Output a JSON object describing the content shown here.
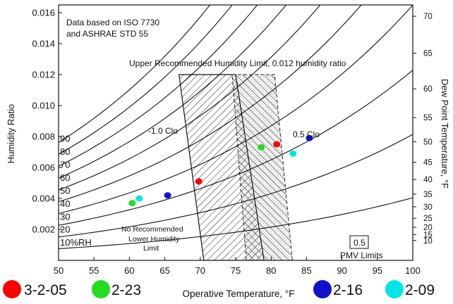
{
  "chart_data": {
    "type": "scatter",
    "xlabel": "Operative Temperature, °F",
    "ylabel": "Humidity Ratio",
    "y2label": "Dew Point Temperature, °F",
    "xlim": [
      50,
      100
    ],
    "ylim": [
      0,
      0.0165
    ],
    "x_ticks": [
      50,
      55,
      60,
      65,
      70,
      75,
      80,
      85,
      90,
      95,
      100
    ],
    "y_ticks": [
      0.002,
      0.004,
      0.006,
      0.008,
      0.01,
      0.012,
      0.014,
      0.016
    ],
    "y_tick_labels": [
      "0.002",
      "0.004",
      "0.006",
      "0.008",
      "0.010",
      "0.012",
      "0.014",
      "0.016"
    ],
    "dew_point_ticks": [
      {
        "label": "70",
        "w": 0.01577
      },
      {
        "label": "65",
        "w": 0.01338
      },
      {
        "label": "60",
        "w": 0.01108
      },
      {
        "label": "55",
        "w": 0.00922
      },
      {
        "label": "50",
        "w": 0.00766
      },
      {
        "label": "45",
        "w": 0.00634
      },
      {
        "label": "40",
        "w": 0.00522
      },
      {
        "label": "35",
        "w": 0.00428
      },
      {
        "label": "30",
        "w": 0.00346
      },
      {
        "label": "25",
        "w": 0.00272
      },
      {
        "label": "20",
        "w": 0.00214
      },
      {
        "label": "15",
        "w": 0.00166
      },
      {
        "label": "10",
        "w": 0.00128
      }
    ],
    "rh_curves": [
      {
        "label": "10%RH",
        "rh": 10
      },
      {
        "label": "20",
        "rh": 20
      },
      {
        "label": "30",
        "rh": 30
      },
      {
        "label": "40",
        "rh": 40
      },
      {
        "label": "50",
        "rh": 50
      },
      {
        "label": "60",
        "rh": 60
      },
      {
        "label": "70",
        "rh": 70
      },
      {
        "label": "80",
        "rh": 80
      },
      {
        "label": "90",
        "rh": 90
      },
      {
        "label": "",
        "rh": 100
      }
    ],
    "comfort_zones": [
      {
        "name": "1.0 Clo",
        "polygon": [
          [
            67,
            0.012
          ],
          [
            75,
            0.012
          ],
          [
            79,
            0.0
          ],
          [
            70.5,
            0.0
          ]
        ]
      },
      {
        "name": "0.5 Clo",
        "polygon": [
          [
            74.5,
            0.012
          ],
          [
            80.5,
            0.012
          ],
          [
            83,
            0.0
          ],
          [
            76.5,
            0.0
          ]
        ]
      }
    ],
    "series": [
      {
        "name": "3-2-05",
        "color": "#ff0000",
        "points": [
          [
            69.8,
            0.0051
          ],
          [
            80.8,
            0.0075
          ]
        ]
      },
      {
        "name": "2-23",
        "color": "#22dd22",
        "points": [
          [
            60.4,
            0.0037
          ],
          [
            78.6,
            0.0073
          ]
        ]
      },
      {
        "name": "2-16",
        "color": "#1111cc",
        "points": [
          [
            65.4,
            0.0042
          ],
          [
            85.4,
            0.0079
          ]
        ]
      },
      {
        "name": "2-09",
        "color": "#00e5e5",
        "points": [
          [
            61.4,
            0.004
          ],
          [
            83.1,
            0.0069
          ]
        ]
      }
    ],
    "annotations": {
      "source_line1": "Data based on ISO 7730",
      "source_line2": "and ASHRAE STD 55",
      "upper_limit": "Upper Recommended Humidity Limit, 0.012 humidity ratio",
      "clo_10": "1.0 Clo",
      "clo_05": "0.5 Clo",
      "lower_limit_1": "No Recommended",
      "lower_limit_2": "Lower Humidity",
      "lower_limit_3": "Limit",
      "pmv_box": "0.5",
      "pmv_limits": "PMV Limits"
    },
    "legend_placement": "bottom"
  }
}
